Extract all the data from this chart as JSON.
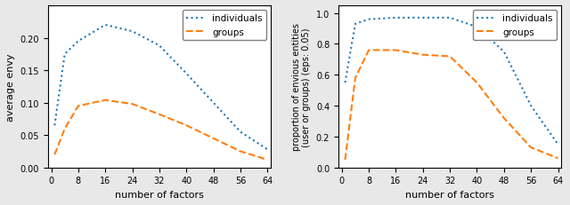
{
  "x_values": [
    1,
    4,
    8,
    16,
    24,
    32,
    40,
    48,
    56,
    64
  ],
  "left_individuals": [
    0.065,
    0.175,
    0.195,
    0.22,
    0.21,
    0.188,
    0.145,
    0.1,
    0.055,
    0.028
  ],
  "left_groups": [
    0.02,
    0.06,
    0.095,
    0.104,
    0.098,
    0.082,
    0.065,
    0.045,
    0.025,
    0.012
  ],
  "right_individuals": [
    0.55,
    0.93,
    0.96,
    0.97,
    0.97,
    0.97,
    0.91,
    0.75,
    0.4,
    0.15
  ],
  "right_groups": [
    0.05,
    0.58,
    0.76,
    0.76,
    0.73,
    0.72,
    0.55,
    0.32,
    0.13,
    0.06
  ],
  "color_individuals": "#1f77b4",
  "color_groups": "#ff7f0e",
  "left_ylabel": "average envy",
  "right_ylabel": "proportion of envious entities\n(user or groups) (eps: 0.05)",
  "xlabel": "number of factors",
  "left_ylim": [
    0.0,
    0.25
  ],
  "right_ylim": [
    0.0,
    1.05
  ],
  "left_yticks": [
    0.0,
    0.05,
    0.1,
    0.15,
    0.2
  ],
  "right_yticks": [
    0.0,
    0.2,
    0.4,
    0.6,
    0.8,
    1.0
  ],
  "xticks": [
    0,
    8,
    16,
    24,
    32,
    40,
    48,
    56,
    64
  ],
  "fig_facecolor": "#e8e8e8"
}
